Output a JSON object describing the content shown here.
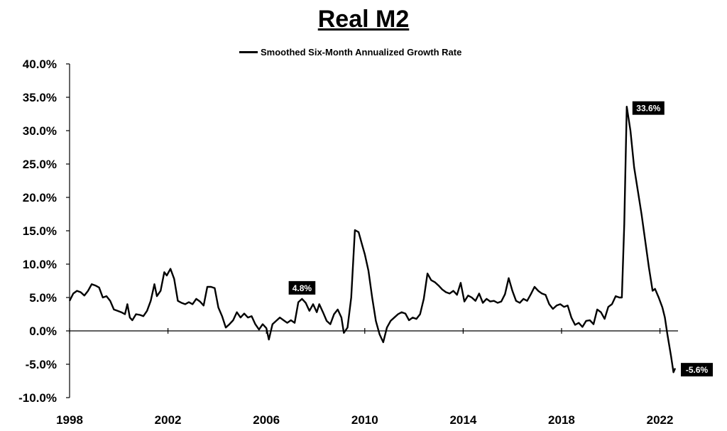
{
  "chart_data": {
    "type": "line",
    "title": "Real M2",
    "xlabel": "",
    "ylabel": "",
    "xlim": [
      1998,
      2023.6
    ],
    "ylim": [
      -10,
      40
    ],
    "x_ticks": [
      1998,
      2002,
      2006,
      2010,
      2014,
      2018,
      2022
    ],
    "y_ticks": [
      {
        "value": 40,
        "label": "40.0%"
      },
      {
        "value": 35,
        "label": "35.0%"
      },
      {
        "value": 30,
        "label": "30.0%"
      },
      {
        "value": 25,
        "label": "25.0%"
      },
      {
        "value": 20,
        "label": "20.0%"
      },
      {
        "value": 15,
        "label": "15.0%"
      },
      {
        "value": 10,
        "label": "10.0%"
      },
      {
        "value": 5,
        "label": "5.0%"
      },
      {
        "value": 0,
        "label": "0.0%"
      },
      {
        "value": -5,
        "label": "-5.0%"
      },
      {
        "value": -10,
        "label": "-10.0%"
      }
    ],
    "grid": false,
    "legend": "top-center",
    "series": [
      {
        "name": "Smoothed Six-Month Annualized Growth Rate",
        "color": "#000000",
        "points": [
          [
            1998.0,
            4.5
          ],
          [
            1998.15,
            5.6
          ],
          [
            1998.3,
            6.0
          ],
          [
            1998.45,
            5.8
          ],
          [
            1998.6,
            5.3
          ],
          [
            1998.75,
            6.0
          ],
          [
            1998.9,
            7.0
          ],
          [
            1999.05,
            6.8
          ],
          [
            1999.2,
            6.5
          ],
          [
            1999.35,
            5.0
          ],
          [
            1999.5,
            5.2
          ],
          [
            1999.65,
            4.5
          ],
          [
            1999.8,
            3.2
          ],
          [
            1999.95,
            3.0
          ],
          [
            2000.1,
            2.8
          ],
          [
            2000.25,
            2.5
          ],
          [
            2000.35,
            4.0
          ],
          [
            2000.45,
            2.0
          ],
          [
            2000.55,
            1.6
          ],
          [
            2000.7,
            2.5
          ],
          [
            2000.85,
            2.4
          ],
          [
            2001.0,
            2.2
          ],
          [
            2001.15,
            3.0
          ],
          [
            2001.3,
            4.5
          ],
          [
            2001.45,
            7.0
          ],
          [
            2001.55,
            5.2
          ],
          [
            2001.7,
            6.0
          ],
          [
            2001.85,
            8.8
          ],
          [
            2001.95,
            8.3
          ],
          [
            2002.1,
            9.3
          ],
          [
            2002.25,
            7.8
          ],
          [
            2002.4,
            4.5
          ],
          [
            2002.55,
            4.2
          ],
          [
            2002.7,
            4.0
          ],
          [
            2002.85,
            4.3
          ],
          [
            2003.0,
            4.0
          ],
          [
            2003.15,
            4.8
          ],
          [
            2003.3,
            4.4
          ],
          [
            2003.45,
            3.8
          ],
          [
            2003.6,
            6.6
          ],
          [
            2003.75,
            6.6
          ],
          [
            2003.9,
            6.4
          ],
          [
            2004.05,
            3.5
          ],
          [
            2004.2,
            2.2
          ],
          [
            2004.35,
            0.5
          ],
          [
            2004.5,
            1.0
          ],
          [
            2004.65,
            1.6
          ],
          [
            2004.8,
            2.8
          ],
          [
            2004.95,
            2.0
          ],
          [
            2005.1,
            2.6
          ],
          [
            2005.25,
            2.0
          ],
          [
            2005.4,
            2.2
          ],
          [
            2005.55,
            1.0
          ],
          [
            2005.7,
            0.2
          ],
          [
            2005.85,
            1.0
          ],
          [
            2006.0,
            0.4
          ],
          [
            2006.1,
            -1.3
          ],
          [
            2006.25,
            1.0
          ],
          [
            2006.4,
            1.5
          ],
          [
            2006.55,
            2.0
          ],
          [
            2006.7,
            1.6
          ],
          [
            2006.85,
            1.2
          ],
          [
            2007.0,
            1.6
          ],
          [
            2007.15,
            1.2
          ],
          [
            2007.3,
            4.3
          ],
          [
            2007.45,
            4.8
          ],
          [
            2007.6,
            4.2
          ],
          [
            2007.75,
            3.0
          ],
          [
            2007.9,
            4.0
          ],
          [
            2008.05,
            2.8
          ],
          [
            2008.15,
            4.0
          ],
          [
            2008.3,
            2.8
          ],
          [
            2008.45,
            1.5
          ],
          [
            2008.6,
            1.0
          ],
          [
            2008.75,
            2.5
          ],
          [
            2008.9,
            3.2
          ],
          [
            2009.05,
            2.0
          ],
          [
            2009.15,
            -0.3
          ],
          [
            2009.3,
            0.5
          ],
          [
            2009.45,
            5.0
          ],
          [
            2009.6,
            15.1
          ],
          [
            2009.75,
            14.8
          ],
          [
            2009.9,
            12.8
          ],
          [
            2010.0,
            11.5
          ],
          [
            2010.15,
            9.0
          ],
          [
            2010.3,
            5.0
          ],
          [
            2010.45,
            1.5
          ],
          [
            2010.6,
            -0.5
          ],
          [
            2010.75,
            -1.7
          ],
          [
            2010.9,
            0.5
          ],
          [
            2011.05,
            1.5
          ],
          [
            2011.2,
            2.0
          ],
          [
            2011.35,
            2.5
          ],
          [
            2011.5,
            2.8
          ],
          [
            2011.65,
            2.6
          ],
          [
            2011.8,
            1.6
          ],
          [
            2011.95,
            2.0
          ],
          [
            2012.1,
            1.8
          ],
          [
            2012.25,
            2.5
          ],
          [
            2012.4,
            4.8
          ],
          [
            2012.55,
            8.6
          ],
          [
            2012.7,
            7.6
          ],
          [
            2012.85,
            7.3
          ],
          [
            2013.0,
            6.8
          ],
          [
            2013.15,
            6.2
          ],
          [
            2013.3,
            5.8
          ],
          [
            2013.45,
            5.6
          ],
          [
            2013.6,
            6.0
          ],
          [
            2013.75,
            5.4
          ],
          [
            2013.9,
            7.2
          ],
          [
            2014.05,
            4.4
          ],
          [
            2014.2,
            5.3
          ],
          [
            2014.35,
            5.0
          ],
          [
            2014.5,
            4.5
          ],
          [
            2014.65,
            5.6
          ],
          [
            2014.8,
            4.2
          ],
          [
            2014.95,
            4.8
          ],
          [
            2015.1,
            4.4
          ],
          [
            2015.25,
            4.5
          ],
          [
            2015.4,
            4.2
          ],
          [
            2015.55,
            4.4
          ],
          [
            2015.7,
            5.5
          ],
          [
            2015.85,
            7.9
          ],
          [
            2016.0,
            6.0
          ],
          [
            2016.15,
            4.5
          ],
          [
            2016.3,
            4.2
          ],
          [
            2016.45,
            4.8
          ],
          [
            2016.6,
            4.5
          ],
          [
            2016.75,
            5.5
          ],
          [
            2016.9,
            6.6
          ],
          [
            2017.05,
            6.0
          ],
          [
            2017.2,
            5.6
          ],
          [
            2017.35,
            5.4
          ],
          [
            2017.5,
            4.0
          ],
          [
            2017.65,
            3.3
          ],
          [
            2017.8,
            3.8
          ],
          [
            2017.95,
            4.0
          ],
          [
            2018.1,
            3.6
          ],
          [
            2018.25,
            3.8
          ],
          [
            2018.4,
            2.0
          ],
          [
            2018.55,
            0.9
          ],
          [
            2018.7,
            1.2
          ],
          [
            2018.85,
            0.6
          ],
          [
            2019.0,
            1.5
          ],
          [
            2019.15,
            1.6
          ],
          [
            2019.3,
            1.0
          ],
          [
            2019.45,
            3.2
          ],
          [
            2019.6,
            2.8
          ],
          [
            2019.75,
            1.8
          ],
          [
            2019.9,
            3.6
          ],
          [
            2020.05,
            4.0
          ],
          [
            2020.2,
            5.2
          ],
          [
            2020.35,
            5.0
          ],
          [
            2020.45,
            5.0
          ],
          [
            2020.55,
            16.0
          ],
          [
            2020.65,
            33.6
          ],
          [
            2020.8,
            30.0
          ],
          [
            2020.95,
            24.5
          ],
          [
            2021.1,
            21.0
          ],
          [
            2021.25,
            17.5
          ],
          [
            2021.4,
            13.5
          ],
          [
            2021.55,
            9.5
          ],
          [
            2021.7,
            6.0
          ],
          [
            2021.8,
            6.3
          ],
          [
            2021.95,
            5.0
          ],
          [
            2022.1,
            3.5
          ],
          [
            2022.2,
            2.0
          ],
          [
            2022.3,
            -0.5
          ],
          [
            2022.45,
            -3.8
          ],
          [
            2022.55,
            -6.2
          ],
          [
            2022.62,
            -5.6
          ]
        ]
      }
    ],
    "annotations": [
      {
        "x": 2007.45,
        "y": 4.8,
        "text": "4.8%",
        "placement": "above"
      },
      {
        "x": 2020.65,
        "y": 33.6,
        "text": "33.6%",
        "placement": "right"
      },
      {
        "x": 2022.62,
        "y": -5.6,
        "text": "-5.6%",
        "placement": "right"
      }
    ]
  }
}
